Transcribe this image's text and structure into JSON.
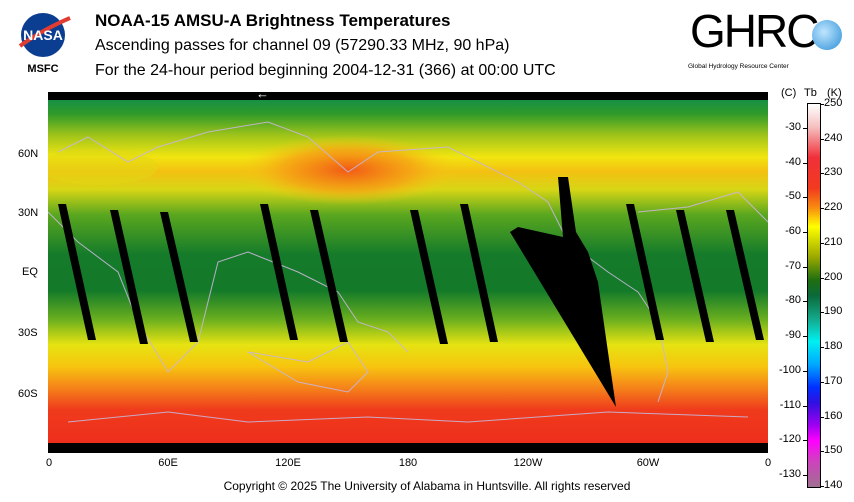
{
  "header": {
    "title": "NOAA-15 AMSU-A Brightness Temperatures",
    "subtitle": "Ascending passes for channel 09 (57290.33 MHz, 90 hPa)",
    "period": "For the 24-hour period beginning 2004-12-31 (366) at 00:00 UTC"
  },
  "logos": {
    "nasa": {
      "text": "NASA",
      "caption": "MSFC"
    },
    "ghrc": {
      "text": "GHRC",
      "caption": "Global Hydrology Resource Center"
    }
  },
  "map": {
    "direction_arrow": "←",
    "lat_labels": [
      "60N",
      "30N",
      "EQ",
      "30S",
      "60S"
    ],
    "lon_labels": [
      "0",
      "60E",
      "120E",
      "180",
      "120W",
      "60W",
      "0"
    ]
  },
  "colorbar": {
    "unit_c": "(C)",
    "title": "Tb",
    "unit_k": "(K)",
    "kelvin_ticks": [
      "250",
      "240",
      "230",
      "220",
      "210",
      "200",
      "190",
      "180",
      "170",
      "160",
      "150",
      "140"
    ],
    "celsius_ticks": [
      "-30",
      "-40",
      "-50",
      "-60",
      "-70",
      "-80",
      "-90",
      "-100",
      "-110",
      "-120",
      "-130"
    ],
    "range_k": [
      140,
      250
    ]
  },
  "footer": {
    "copyright": "Copyright © 2025 The University of Alabama in Huntsville.  All rights reserved"
  }
}
